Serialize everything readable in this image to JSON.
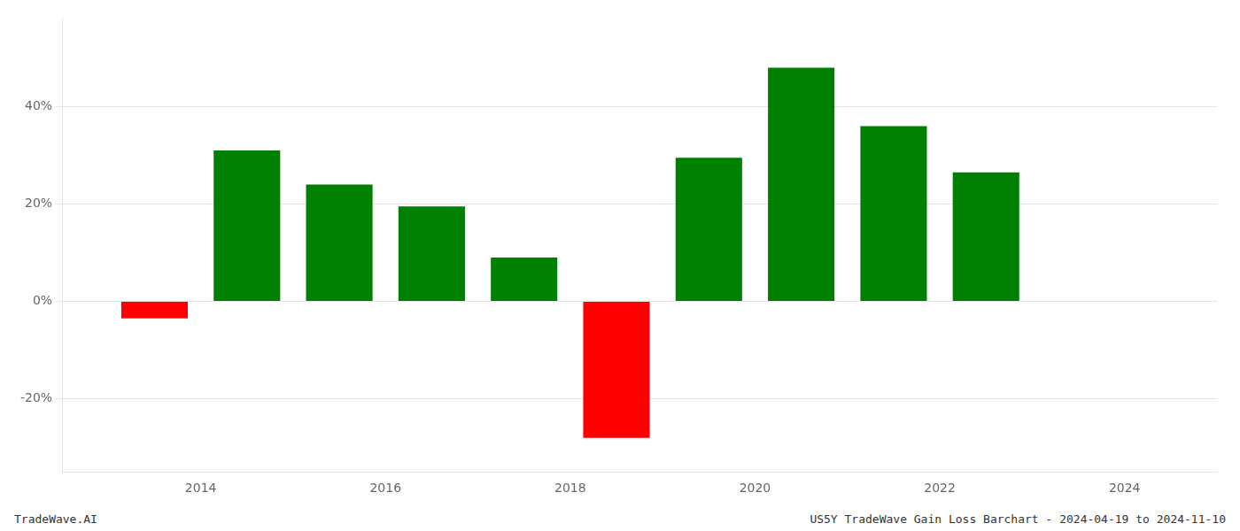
{
  "chart_data": {
    "type": "bar",
    "x": [
      2013.5,
      2014.5,
      2015.5,
      2016.5,
      2017.5,
      2018.5,
      2019.5,
      2020.5,
      2021.5,
      2022.5
    ],
    "values": [
      -3.5,
      31.0,
      24.0,
      19.5,
      9.0,
      -28.0,
      29.5,
      48.0,
      36.0,
      26.5
    ],
    "colors": [
      "#ff0000",
      "#008000",
      "#008000",
      "#008000",
      "#008000",
      "#ff0000",
      "#008000",
      "#008000",
      "#008000",
      "#008000"
    ],
    "xlim": [
      2012.5,
      2025.0
    ],
    "xticks": [
      2014,
      2016,
      2018,
      2020,
      2022,
      2024
    ],
    "ylim": [
      -35,
      58
    ],
    "yticks": [
      {
        "value": -20,
        "label": "-20%"
      },
      {
        "value": 0,
        "label": "0%"
      },
      {
        "value": 20,
        "label": "20%"
      },
      {
        "value": 40,
        "label": "40%"
      }
    ],
    "grid": true,
    "annotations": [
      "TradeWave.AI",
      "US5Y TradeWave Gain Loss Barchart - 2024-04-19 to 2024-11-10"
    ]
  }
}
